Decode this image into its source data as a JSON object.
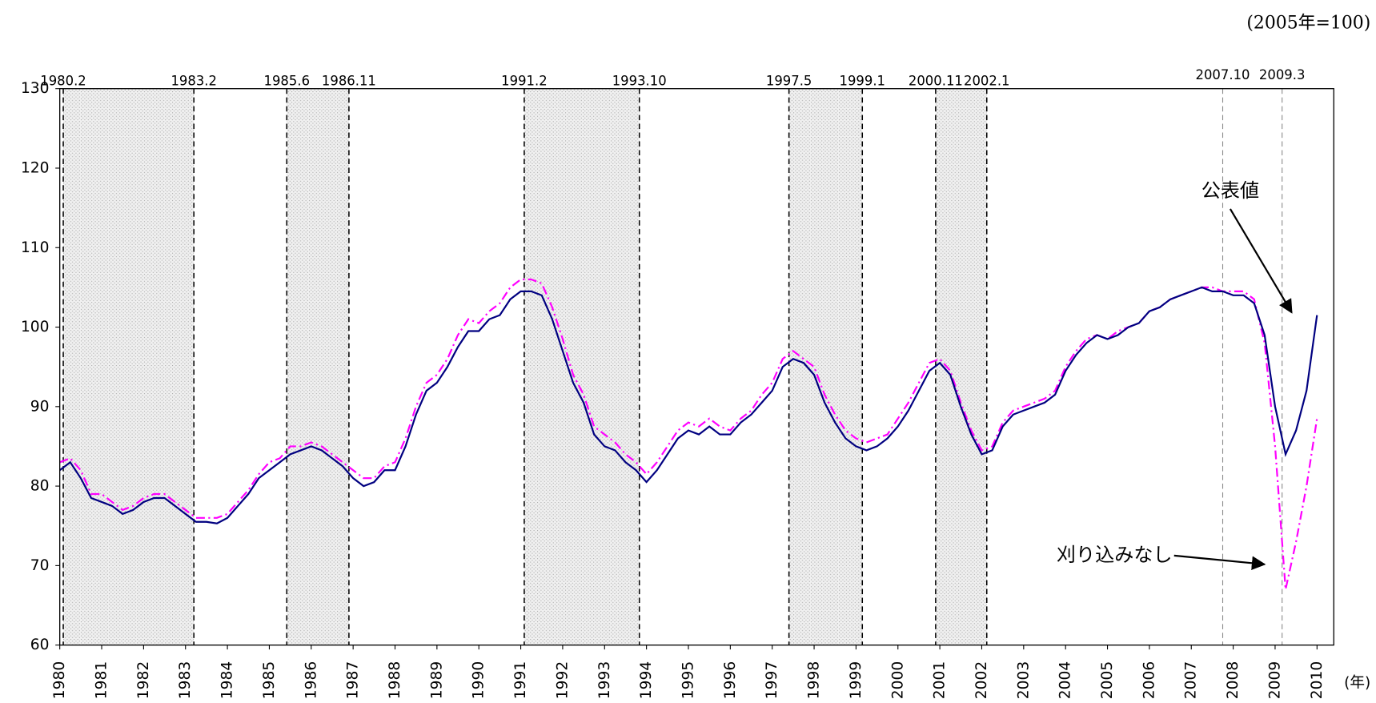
{
  "chart_data": {
    "type": "line",
    "unit_note": "(2005年=100)",
    "x_unit": "(年)",
    "xlim": [
      1980,
      2010.4
    ],
    "xticks": [
      1980,
      1981,
      1982,
      1983,
      1984,
      1985,
      1986,
      1987,
      1988,
      1989,
      1990,
      1991,
      1992,
      1993,
      1994,
      1995,
      1996,
      1997,
      1998,
      1999,
      2000,
      2001,
      2002,
      2003,
      2004,
      2005,
      2006,
      2007,
      2008,
      2009,
      2010
    ],
    "ylim": [
      60,
      130
    ],
    "yticks": [
      60,
      70,
      80,
      90,
      100,
      110,
      120,
      130
    ],
    "grid": false,
    "x": [
      1980,
      1980.25,
      1980.5,
      1980.75,
      1981,
      1981.25,
      1981.5,
      1981.75,
      1982,
      1982.25,
      1982.5,
      1982.75,
      1983,
      1983.25,
      1983.5,
      1983.75,
      1984,
      1984.25,
      1984.5,
      1984.75,
      1985,
      1985.25,
      1985.5,
      1985.75,
      1986,
      1986.25,
      1986.5,
      1986.75,
      1987,
      1987.25,
      1987.5,
      1987.75,
      1988,
      1988.25,
      1988.5,
      1988.75,
      1989,
      1989.25,
      1989.5,
      1989.75,
      1990,
      1990.25,
      1990.5,
      1990.75,
      1991,
      1991.25,
      1991.5,
      1991.75,
      1992,
      1992.25,
      1992.5,
      1992.75,
      1993,
      1993.25,
      1993.5,
      1993.75,
      1994,
      1994.25,
      1994.5,
      1994.75,
      1995,
      1995.25,
      1995.5,
      1995.75,
      1996,
      1996.25,
      1996.5,
      1996.75,
      1997,
      1997.25,
      1997.5,
      1997.75,
      1998,
      1998.25,
      1998.5,
      1998.75,
      1999,
      1999.25,
      1999.5,
      1999.75,
      2000,
      2000.25,
      2000.5,
      2000.75,
      2001,
      2001.25,
      2001.5,
      2001.75,
      2002,
      2002.25,
      2002.5,
      2002.75,
      2003,
      2003.25,
      2003.5,
      2003.75,
      2004,
      2004.25,
      2004.5,
      2004.75,
      2005,
      2005.25,
      2005.5,
      2005.75,
      2006,
      2006.25,
      2006.5,
      2006.75,
      2007,
      2007.25,
      2007.5,
      2007.75,
      2008,
      2008.25,
      2008.5,
      2008.75,
      2009,
      2009.25,
      2009.5,
      2009.75,
      2010
    ],
    "series": [
      {
        "name": "公表値",
        "color": "#000080",
        "dash": "none",
        "values": [
          82,
          83,
          81,
          78.5,
          78,
          77.5,
          76.5,
          77,
          78,
          78.5,
          78.5,
          77.5,
          76.5,
          75.5,
          75.5,
          75.3,
          76,
          77.5,
          79,
          81,
          82,
          83,
          84,
          84.5,
          85,
          84.5,
          83.5,
          82.5,
          81,
          80,
          80.5,
          82,
          82,
          85,
          89,
          92,
          93,
          95,
          97.5,
          99.5,
          99.5,
          101,
          101.5,
          103.5,
          104.5,
          104.5,
          104,
          101,
          97,
          93,
          90.5,
          86.5,
          85,
          84.5,
          83,
          82,
          80.5,
          82,
          84,
          86,
          87,
          86.5,
          87.5,
          86.5,
          86.5,
          88,
          89,
          90.5,
          92,
          95,
          96,
          95.5,
          94,
          90.5,
          88,
          86,
          85,
          84.5,
          85,
          86,
          87.5,
          89.5,
          92,
          94.5,
          95.5,
          94,
          90,
          86.5,
          84,
          84.5,
          87.5,
          89,
          89.5,
          90,
          90.5,
          91.5,
          94.5,
          96.5,
          98,
          99,
          98.5,
          99,
          100,
          100.5,
          102,
          102.5,
          103.5,
          104,
          104.5,
          105,
          104.5,
          104.5,
          104,
          104,
          103,
          99,
          90,
          84,
          87,
          92,
          101.5
        ]
      },
      {
        "name": "刈り込みなし",
        "color": "#ff00ff",
        "dash": "10 4 2 4",
        "values": [
          83,
          83.5,
          82,
          79,
          79,
          78,
          77,
          77.5,
          78.5,
          79,
          79,
          78,
          77,
          76,
          76,
          76,
          76.5,
          78,
          79.5,
          81.5,
          83,
          83.5,
          85,
          85,
          85.5,
          85,
          84,
          83,
          82,
          81,
          81,
          82.5,
          83,
          86,
          90,
          93,
          94,
          96,
          99,
          101,
          100.5,
          102,
          103,
          105,
          106,
          106,
          105.5,
          102.5,
          98.5,
          94,
          91.5,
          87.5,
          86.5,
          85.5,
          84,
          83,
          81.5,
          83,
          85,
          87,
          88,
          87.5,
          88.5,
          87.5,
          87,
          88.5,
          89.5,
          91.5,
          93,
          96,
          97,
          96,
          95,
          91.5,
          89,
          87,
          86,
          85.5,
          86,
          86.5,
          88.5,
          90.5,
          93,
          95.5,
          96,
          94.5,
          90.5,
          87,
          84.5,
          85,
          88,
          89.5,
          90,
          90.5,
          91,
          92,
          95,
          97,
          98.5,
          99,
          98.5,
          99.5,
          100,
          100.5,
          102,
          102.5,
          103.5,
          104,
          104.5,
          105,
          105,
          104.5,
          104.5,
          104.5,
          103.5,
          98,
          85,
          67,
          73,
          80,
          88.5
        ]
      }
    ],
    "recessions": [
      {
        "start": {
          "label": "1980.2",
          "x": 1980.083
        },
        "end": {
          "label": "1983.2",
          "x": 1983.2
        },
        "shaded": true,
        "line_color": "#000"
      },
      {
        "start": {
          "label": "1985.6",
          "x": 1985.417
        },
        "end": {
          "label": "1986.11",
          "x": 1986.9
        },
        "shaded": true,
        "line_color": "#000"
      },
      {
        "start": {
          "label": "1991.2",
          "x": 1991.083
        },
        "end": {
          "label": "1993.10",
          "x": 1993.83
        },
        "shaded": true,
        "line_color": "#000"
      },
      {
        "start": {
          "label": "1997.5",
          "x": 1997.4
        },
        "end": {
          "label": "1999.1",
          "x": 1999.15
        },
        "shaded": true,
        "line_color": "#000"
      },
      {
        "start": {
          "label": "2000.11",
          "x": 2000.9
        },
        "end": {
          "label": "2002.1",
          "x": 2002.12
        },
        "shaded": true,
        "line_color": "#000"
      },
      {
        "start": {
          "label": "2007.10",
          "x": 2007.75
        },
        "end": {
          "label": "2009.3",
          "x": 2009.167
        },
        "shaded": false,
        "line_color": "#888"
      }
    ]
  }
}
